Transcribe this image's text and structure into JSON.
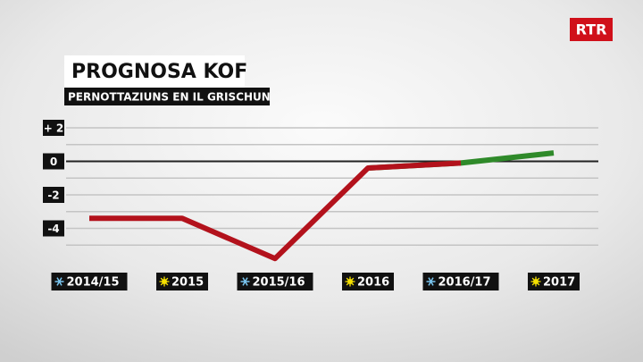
{
  "logo": "RTR",
  "chart_data": {
    "type": "line",
    "title": "PROGNOSA KOF",
    "subtitle": "PERNOTTAZIUNS EN IL GRISCHUN",
    "categories": [
      "2014/15",
      "2015",
      "2015/16",
      "2016",
      "2016/17",
      "2017"
    ],
    "series": [
      {
        "color": "#2f8a2a",
        "values": [
          null,
          null,
          null,
          -0.4,
          -0.1,
          0.5
        ]
      },
      {
        "color": "#b3121c",
        "values": [
          -3.4,
          -3.4,
          -5.8,
          -0.4,
          -0.1,
          null
        ]
      }
    ],
    "ylim": [
      -6,
      2
    ],
    "yticks": [
      {
        "value": 2,
        "label": "+ 2"
      },
      0,
      -2,
      -4
    ],
    "yminorticks": [
      1,
      -1,
      -3,
      -5
    ],
    "grid": true
  }
}
